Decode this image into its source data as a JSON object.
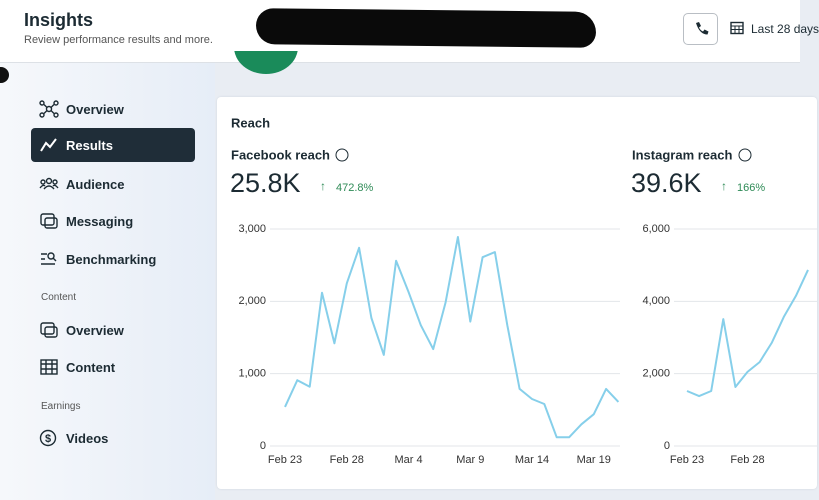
{
  "header": {
    "title": "Insights",
    "subtitle": "Review performance results and more.",
    "date_range": "Last 28 days"
  },
  "sidebar": {
    "groups": [
      {
        "items": [
          {
            "label": "Overview"
          },
          {
            "label": "Results",
            "active": true
          },
          {
            "label": "Audience"
          },
          {
            "label": "Messaging"
          },
          {
            "label": "Benchmarking"
          }
        ]
      },
      {
        "title": "Content",
        "items": [
          {
            "label": "Overview"
          },
          {
            "label": "Content"
          }
        ]
      },
      {
        "title": "Earnings",
        "items": [
          {
            "label": "Videos"
          }
        ]
      }
    ]
  },
  "card": {
    "title": "Reach"
  },
  "chart_data": [
    {
      "type": "line",
      "title": "Facebook reach",
      "total": "25.8K",
      "change": "472.8%",
      "color": "#86cfea",
      "grid": true,
      "categories": [
        "Feb 23",
        null,
        null,
        null,
        null,
        "Feb 28",
        null,
        null,
        null,
        null,
        "Mar 4",
        null,
        null,
        null,
        null,
        "Mar 9",
        null,
        null,
        null,
        null,
        "Mar 14",
        null,
        null,
        null,
        null,
        "Mar 19",
        null,
        null
      ],
      "values": [
        540,
        910,
        820,
        2120,
        1420,
        2250,
        2740,
        1770,
        1260,
        2560,
        2130,
        1670,
        1340,
        1980,
        2890,
        1720,
        2610,
        2680,
        1670,
        790,
        650,
        580,
        120,
        120,
        300,
        440,
        790,
        610
      ],
      "ylim": [
        0,
        3000
      ],
      "yticks": [
        0,
        {
          "value": 1000,
          "label": "1,000"
        },
        {
          "value": 2000,
          "label": "2,000"
        },
        {
          "value": 3000,
          "label": "3,000"
        }
      ]
    },
    {
      "type": "line",
      "title": "Instagram reach",
      "total": "39.6K",
      "change": "166%",
      "color": "#86cfea",
      "grid": true,
      "categories": [
        "Feb 23",
        null,
        null,
        null,
        null,
        "Feb 28",
        null,
        null,
        null,
        null,
        null
      ],
      "values": [
        1520,
        1380,
        1520,
        3510,
        1630,
        2050,
        2320,
        2850,
        3570,
        4150,
        4870
      ],
      "ylim": [
        0,
        6000
      ],
      "yticks": [
        0,
        {
          "value": 2000,
          "label": "2,000"
        },
        {
          "value": 4000,
          "label": "4,000"
        },
        {
          "value": 6000,
          "label": "6,000"
        }
      ]
    }
  ]
}
